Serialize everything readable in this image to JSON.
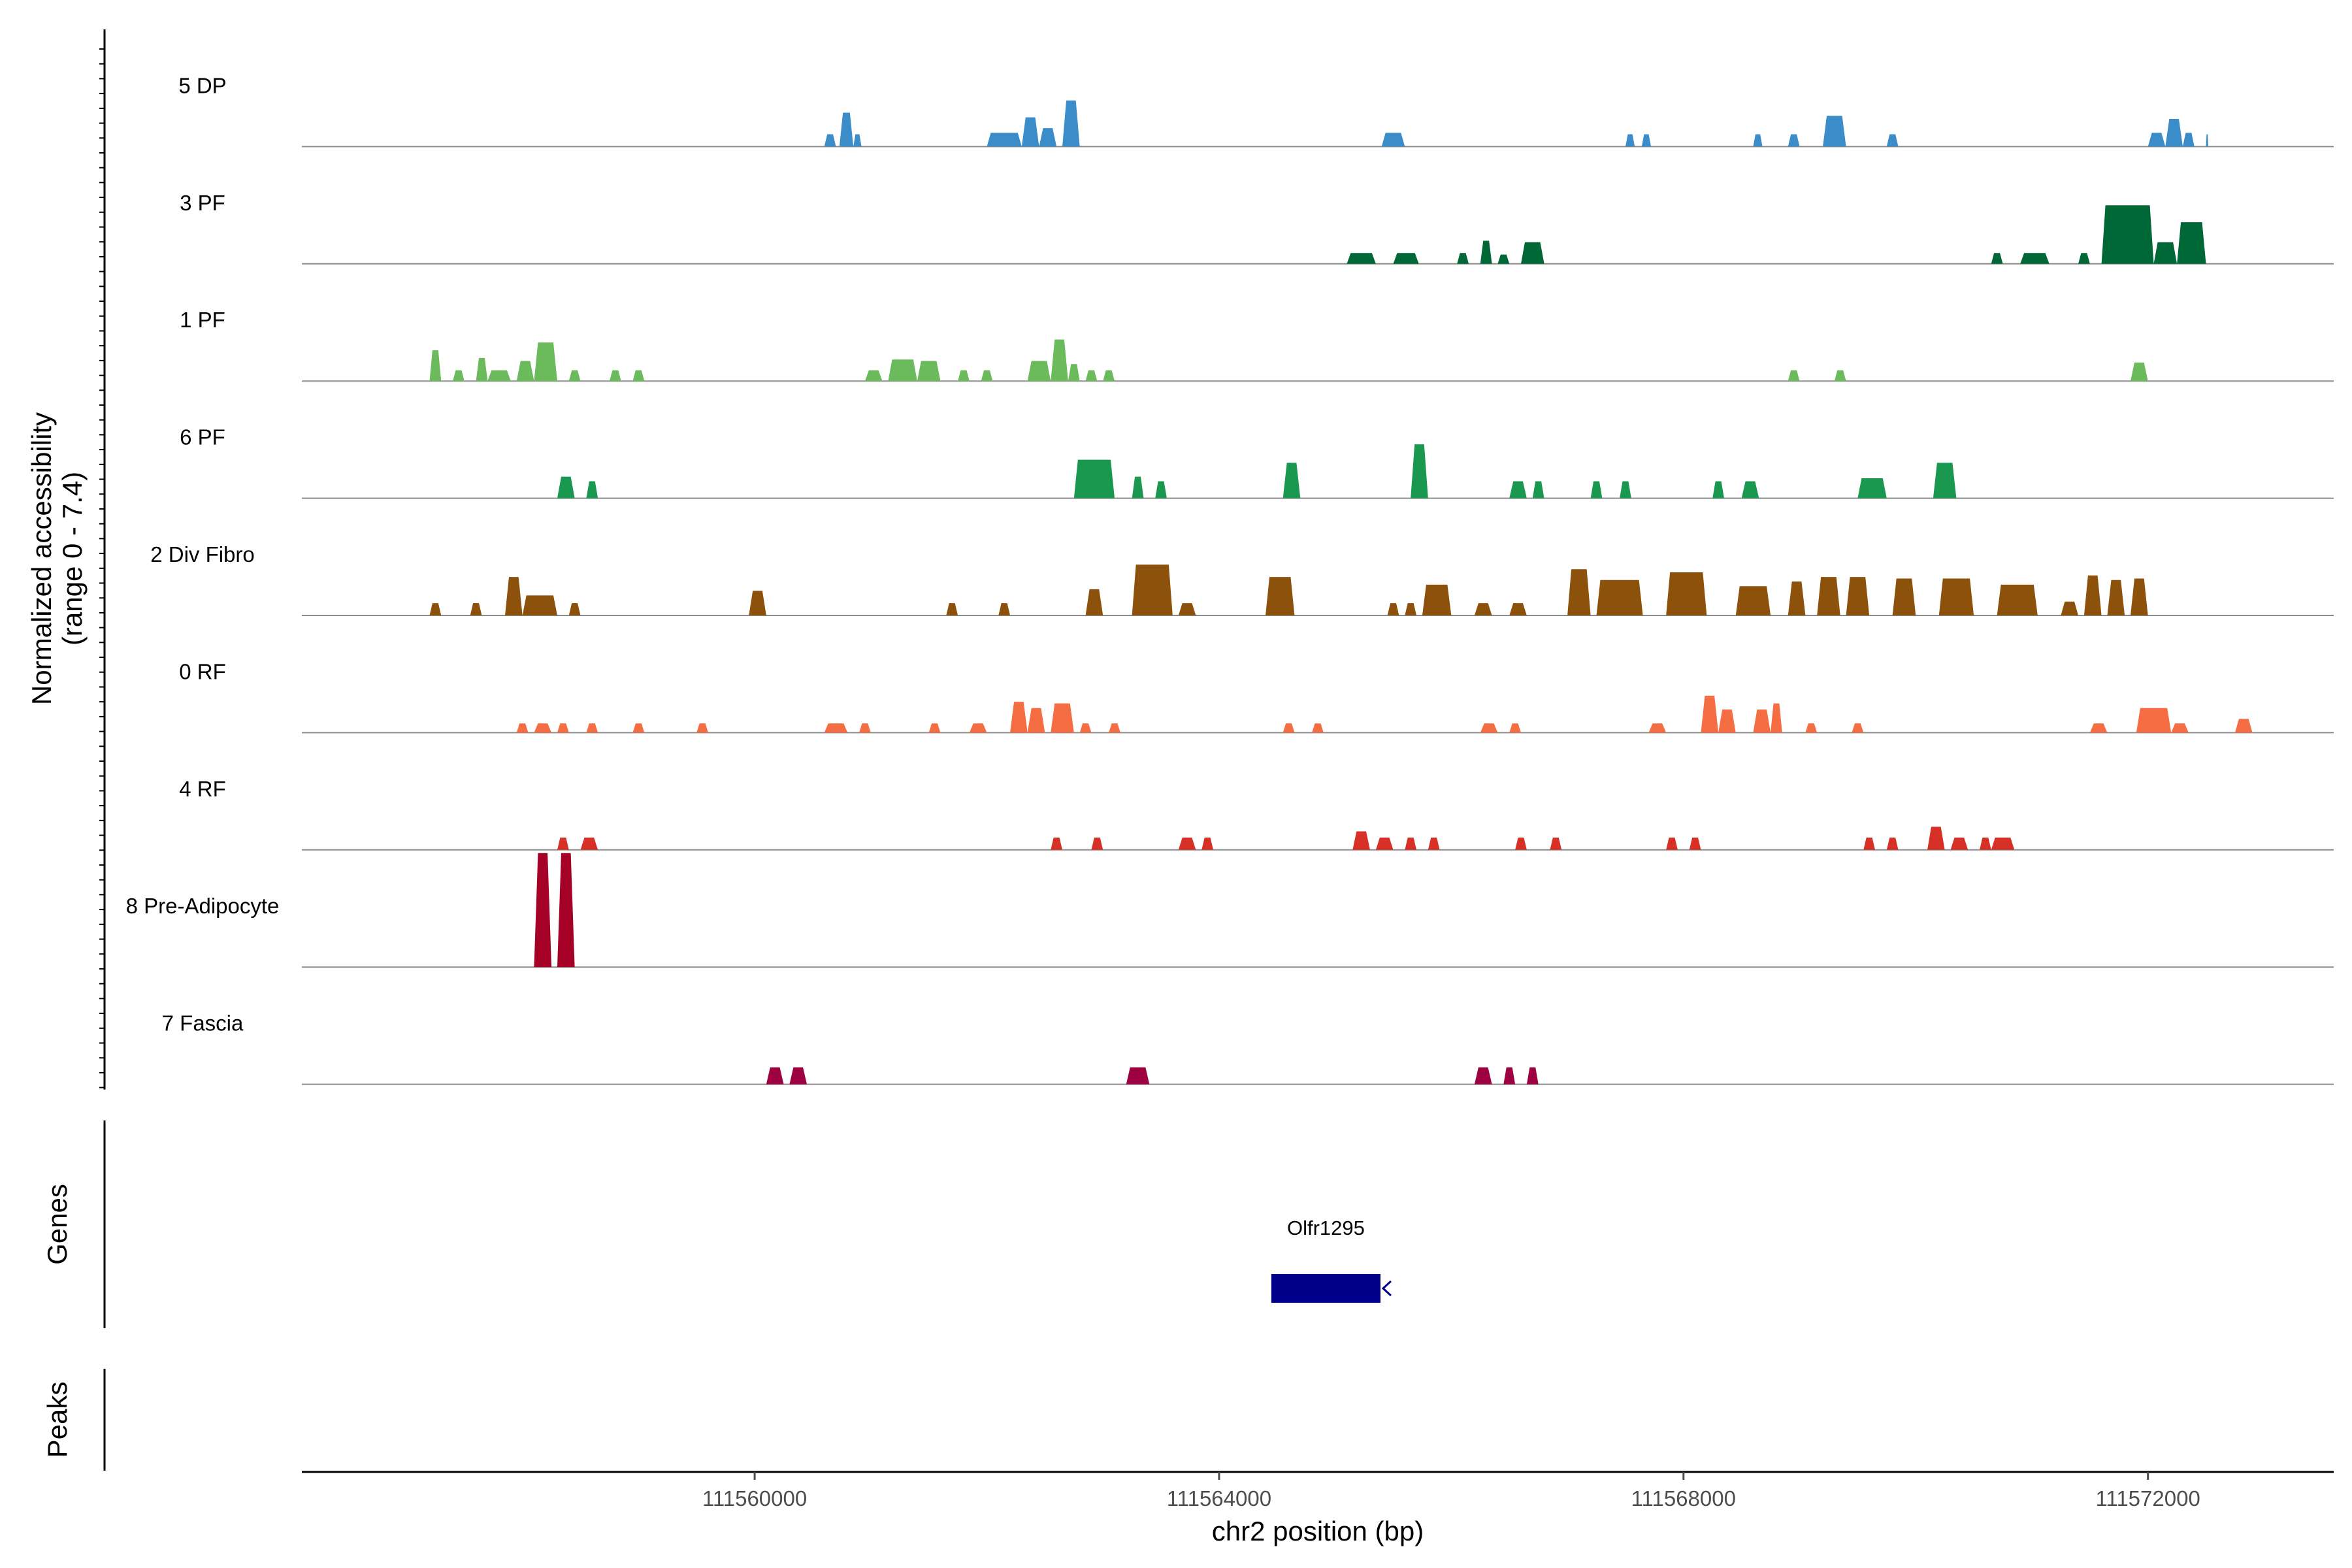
{
  "chart_data": {
    "type": "coverage",
    "chromosome": "chr2",
    "x_axis_label": "chr2 position (bp)",
    "x_range": [
      111556100,
      111573600
    ],
    "x_ticks": [
      111560000,
      111564000,
      111568000,
      111572000
    ],
    "x_tick_labels": [
      "111560000",
      "111564000",
      "111568000",
      "111572000"
    ],
    "y_axis_label_line1": "Normalized accessibility",
    "y_axis_label_line2": "(range 0 - 7.4)",
    "y_range": [
      0,
      7.4
    ],
    "genes_panel_label": "Genes",
    "peaks_panel_label": "Peaks",
    "tracks": [
      {
        "name": "5 DP",
        "color": "#3A8DC8",
        "peaks": [
          [
            111560600,
            111560700,
            0.8
          ],
          [
            111560730,
            111560850,
            2.2
          ],
          [
            111560850,
            111560920,
            0.8
          ],
          [
            111562000,
            111562300,
            0.9
          ],
          [
            111562300,
            111562450,
            1.9
          ],
          [
            111562450,
            111562600,
            1.2
          ],
          [
            111562650,
            111562800,
            3.0
          ],
          [
            111565400,
            111565600,
            0.9
          ],
          [
            111567500,
            111567580,
            0.8
          ],
          [
            111567640,
            111567720,
            0.8
          ],
          [
            111568600,
            111568680,
            0.8
          ],
          [
            111568900,
            111569000,
            0.8
          ],
          [
            111569200,
            111569400,
            2.0
          ],
          [
            111569750,
            111569850,
            0.8
          ],
          [
            111572000,
            111572150,
            0.9
          ],
          [
            111572150,
            111572300,
            1.8
          ],
          [
            111572300,
            111572400,
            0.9
          ],
          [
            111572500,
            111572520,
            0.8
          ]
        ]
      },
      {
        "name": "3 PF",
        "color": "#006837",
        "peaks": [
          [
            111565100,
            111565350,
            0.7
          ],
          [
            111565500,
            111565720,
            0.7
          ],
          [
            111566050,
            111566150,
            0.7
          ],
          [
            111566250,
            111566350,
            1.5
          ],
          [
            111566400,
            111566500,
            0.6
          ],
          [
            111566600,
            111566800,
            1.4
          ],
          [
            111570650,
            111570750,
            0.7
          ],
          [
            111570900,
            111571150,
            0.7
          ],
          [
            111571400,
            111571500,
            0.7
          ],
          [
            111571600,
            111572050,
            3.8
          ],
          [
            111572050,
            111572250,
            1.4
          ],
          [
            111572250,
            111572500,
            2.7
          ]
        ]
      },
      {
        "name": "1 PF",
        "color": "#6BBB5C",
        "peaks": [
          [
            111557200,
            111557300,
            2.0
          ],
          [
            111557400,
            111557500,
            0.7
          ],
          [
            111557600,
            111557700,
            1.5
          ],
          [
            111557700,
            111557900,
            0.7
          ],
          [
            111557950,
            111558100,
            1.3
          ],
          [
            111558100,
            111558300,
            2.5
          ],
          [
            111558400,
            111558500,
            0.7
          ],
          [
            111558750,
            111558850,
            0.7
          ],
          [
            111558950,
            111559050,
            0.7
          ],
          [
            111560950,
            111561100,
            0.7
          ],
          [
            111561150,
            111561400,
            1.4
          ],
          [
            111561400,
            111561600,
            1.3
          ],
          [
            111561750,
            111561850,
            0.7
          ],
          [
            111561950,
            111562050,
            0.7
          ],
          [
            111562350,
            111562550,
            1.3
          ],
          [
            111562550,
            111562700,
            2.7
          ],
          [
            111562700,
            111562800,
            1.1
          ],
          [
            111562850,
            111562950,
            0.7
          ],
          [
            111563000,
            111563100,
            0.7
          ],
          [
            111568900,
            111569000,
            0.7
          ],
          [
            111569300,
            111569400,
            0.7
          ],
          [
            111571850,
            111572000,
            1.2
          ]
        ]
      },
      {
        "name": "6 PF",
        "color": "#1A9850",
        "peaks": [
          [
            111558300,
            111558450,
            1.4
          ],
          [
            111558550,
            111558650,
            1.1
          ],
          [
            111562750,
            111563100,
            2.5
          ],
          [
            111563250,
            111563350,
            1.4
          ],
          [
            111563450,
            111563550,
            1.1
          ],
          [
            111564550,
            111564700,
            2.3
          ],
          [
            111565650,
            111565800,
            3.5
          ],
          [
            111566500,
            111566650,
            1.1
          ],
          [
            111566700,
            111566800,
            1.1
          ],
          [
            111567200,
            111567300,
            1.1
          ],
          [
            111567450,
            111567550,
            1.1
          ],
          [
            111568250,
            111568350,
            1.1
          ],
          [
            111568500,
            111568650,
            1.1
          ],
          [
            111569500,
            111569750,
            1.3
          ],
          [
            111570150,
            111570350,
            2.3
          ]
        ]
      },
      {
        "name": "2 Div Fibro",
        "color": "#8C510A",
        "peaks": [
          [
            111557200,
            111557300,
            0.8
          ],
          [
            111557550,
            111557650,
            0.8
          ],
          [
            111557850,
            111558000,
            2.5
          ],
          [
            111558000,
            111558300,
            1.3
          ],
          [
            111558400,
            111558500,
            0.8
          ],
          [
            111559950,
            111560100,
            1.6
          ],
          [
            111561650,
            111561750,
            0.8
          ],
          [
            111562100,
            111562200,
            0.8
          ],
          [
            111562850,
            111563000,
            1.7
          ],
          [
            111563250,
            111563600,
            3.3
          ],
          [
            111563650,
            111563800,
            0.8
          ],
          [
            111564400,
            111564650,
            2.5
          ],
          [
            111565450,
            111565550,
            0.8
          ],
          [
            111565600,
            111565700,
            0.8
          ],
          [
            111565750,
            111566000,
            2.0
          ],
          [
            111566200,
            111566350,
            0.8
          ],
          [
            111566500,
            111566650,
            0.8
          ],
          [
            111567000,
            111567200,
            3.0
          ],
          [
            111567250,
            111567650,
            2.3
          ],
          [
            111567850,
            111568200,
            2.8
          ],
          [
            111568450,
            111568750,
            1.9
          ],
          [
            111568900,
            111569050,
            2.2
          ],
          [
            111569150,
            111569350,
            2.5
          ],
          [
            111569400,
            111569600,
            2.5
          ],
          [
            111569800,
            111570000,
            2.4
          ],
          [
            111570200,
            111570500,
            2.4
          ],
          [
            111570700,
            111571050,
            2.0
          ],
          [
            111571250,
            111571400,
            0.9
          ],
          [
            111571450,
            111571600,
            2.6
          ],
          [
            111571650,
            111571800,
            2.3
          ],
          [
            111571850,
            111572000,
            2.4
          ]
        ]
      },
      {
        "name": "0 RF",
        "color": "#F46D43",
        "peaks": [
          [
            111557950,
            111558050,
            0.6
          ],
          [
            111558100,
            111558250,
            0.6
          ],
          [
            111558300,
            111558400,
            0.6
          ],
          [
            111558550,
            111558650,
            0.6
          ],
          [
            111558950,
            111559050,
            0.6
          ],
          [
            111559500,
            111559600,
            0.6
          ],
          [
            111560600,
            111560800,
            0.6
          ],
          [
            111560900,
            111561000,
            0.6
          ],
          [
            111561500,
            111561600,
            0.6
          ],
          [
            111561850,
            111562000,
            0.6
          ],
          [
            111562200,
            111562350,
            2.0
          ],
          [
            111562350,
            111562500,
            1.6
          ],
          [
            111562550,
            111562750,
            1.9
          ],
          [
            111562800,
            111562900,
            0.6
          ],
          [
            111563050,
            111563150,
            0.6
          ],
          [
            111564550,
            111564650,
            0.6
          ],
          [
            111564800,
            111564900,
            0.6
          ],
          [
            111566250,
            111566400,
            0.6
          ],
          [
            111566500,
            111566600,
            0.6
          ],
          [
            111567700,
            111567850,
            0.6
          ],
          [
            111568150,
            111568300,
            2.4
          ],
          [
            111568300,
            111568450,
            1.5
          ],
          [
            111568600,
            111568750,
            1.5
          ],
          [
            111568750,
            111568850,
            1.9
          ],
          [
            111569050,
            111569150,
            0.6
          ],
          [
            111569450,
            111569550,
            0.6
          ],
          [
            111571500,
            111571650,
            0.6
          ],
          [
            111571900,
            111572200,
            1.6
          ],
          [
            111572200,
            111572350,
            0.6
          ],
          [
            111572750,
            111572900,
            0.9
          ]
        ]
      },
      {
        "name": "4 RF",
        "color": "#D73027",
        "peaks": [
          [
            111558300,
            111558400,
            0.8
          ],
          [
            111558500,
            111558650,
            0.8
          ],
          [
            111562550,
            111562650,
            0.8
          ],
          [
            111562900,
            111563000,
            0.8
          ],
          [
            111563650,
            111563800,
            0.8
          ],
          [
            111563850,
            111563950,
            0.8
          ],
          [
            111565150,
            111565300,
            1.2
          ],
          [
            111565350,
            111565500,
            0.8
          ],
          [
            111565600,
            111565700,
            0.8
          ],
          [
            111565800,
            111565900,
            0.8
          ],
          [
            111566550,
            111566650,
            0.8
          ],
          [
            111566850,
            111566950,
            0.8
          ],
          [
            111567850,
            111567950,
            0.8
          ],
          [
            111568050,
            111568150,
            0.8
          ],
          [
            111569550,
            111569650,
            0.8
          ],
          [
            111569750,
            111569850,
            0.8
          ],
          [
            111570100,
            111570250,
            1.5
          ],
          [
            111570300,
            111570450,
            0.8
          ],
          [
            111570550,
            111570650,
            0.8
          ],
          [
            111570650,
            111570850,
            0.8
          ]
        ]
      },
      {
        "name": "8 Pre-Adipocyte",
        "color": "#A50026",
        "peaks": [
          [
            111558100,
            111558250,
            7.4
          ],
          [
            111558300,
            111558450,
            7.4
          ]
        ]
      },
      {
        "name": "7 Fascia",
        "color": "#9E0142",
        "peaks": [
          [
            111560100,
            111560250,
            1.1
          ],
          [
            111560300,
            111560450,
            1.1
          ],
          [
            111563200,
            111563400,
            1.1
          ],
          [
            111566200,
            111566350,
            1.1
          ],
          [
            111566450,
            111566550,
            1.1
          ],
          [
            111566650,
            111566750,
            1.1
          ]
        ]
      }
    ],
    "genes": [
      {
        "name": "Olfr1295",
        "start": 111564450,
        "end": 111565390,
        "strand": "-"
      }
    ],
    "peaks": []
  }
}
